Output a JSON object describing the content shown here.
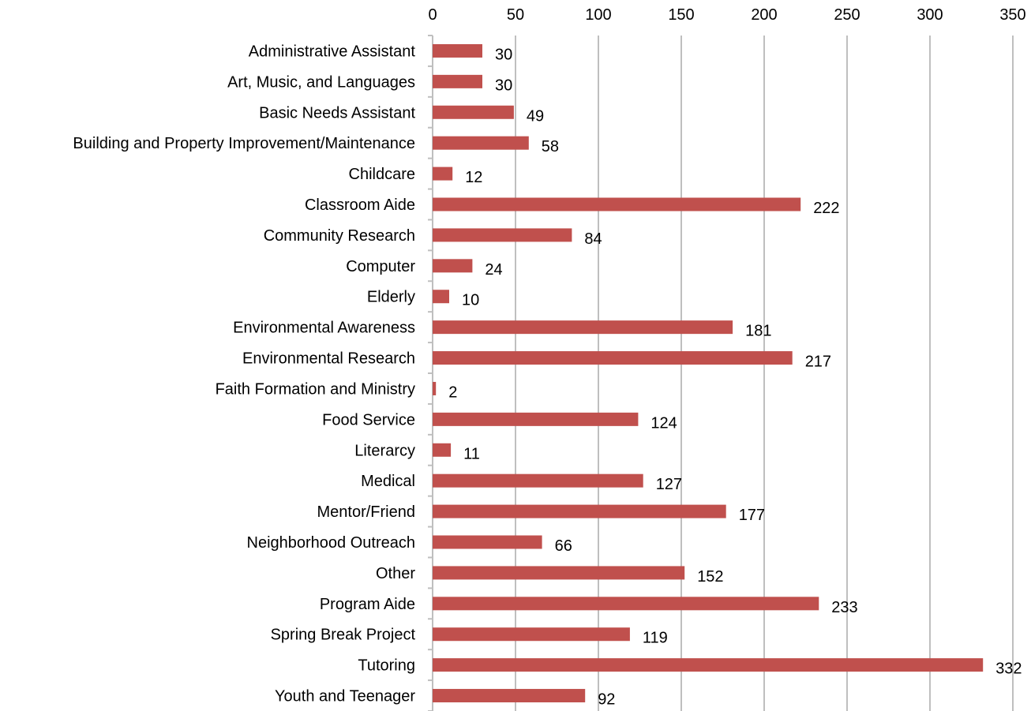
{
  "chart_data": {
    "type": "bar",
    "orientation": "horizontal",
    "title": "",
    "xlabel": "",
    "ylabel": "",
    "xlim": [
      0,
      350
    ],
    "x_ticks": [
      0,
      50,
      100,
      150,
      200,
      250,
      300,
      350
    ],
    "x_axis_position": "top",
    "grid": true,
    "legend": "none",
    "bar_color": "#c0504d",
    "grid_color": "#bfbfbf",
    "categories": [
      "Administrative Assistant",
      "Art, Music, and Languages",
      "Basic Needs Assistant",
      "Building and Property Improvement/Maintenance",
      "Childcare",
      "Classroom Aide",
      "Community Research",
      "Computer",
      "Elderly",
      "Environmental Awareness",
      "Environmental Research",
      "Faith Formation and Ministry",
      "Food Service",
      "Literarcy",
      "Medical",
      "Mentor/Friend",
      "Neighborhood Outreach",
      "Other",
      "Program Aide",
      "Spring Break Project",
      "Tutoring",
      "Youth and Teenager"
    ],
    "values": [
      30,
      30,
      49,
      58,
      12,
      222,
      84,
      24,
      10,
      181,
      217,
      2,
      124,
      11,
      127,
      177,
      66,
      152,
      233,
      119,
      332,
      92
    ]
  }
}
